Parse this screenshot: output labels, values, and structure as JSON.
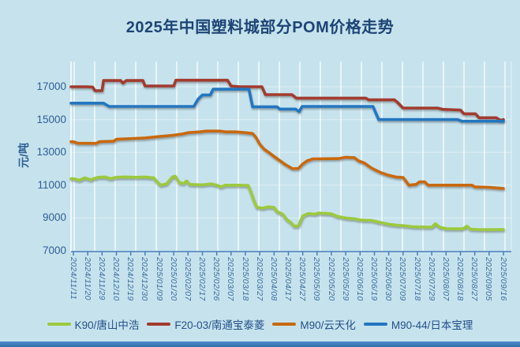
{
  "title": "2025年中国塑料城部分POM价格走势",
  "chart_data": {
    "type": "line",
    "title": "2025年中国塑料城部分POM价格走势",
    "xlabel": "",
    "ylabel": "元/吨",
    "ylim": [
      7000,
      18540
    ],
    "y_ticks": [
      7000,
      9000,
      11000,
      13000,
      15000,
      17000
    ],
    "grid": "vertical-white, faint-horizontal",
    "legend_position": "bottom",
    "x_labels": [
      "2024/11/11",
      "2024/11/20",
      "2024/11/29",
      "2024/12/10",
      "2024/12/19",
      "2024/12/30",
      "2025/01/09",
      "2025/01/20",
      "2025/02/07",
      "2025/02/17",
      "2025/02/26",
      "2025/03/07",
      "2025/03/18",
      "2025/03/27",
      "2025/04/08",
      "2025/04/17",
      "2025/04/27",
      "2025/05/09",
      "2025/05/20",
      "2025/05/29",
      "2025/06/10",
      "2025/06/19",
      "2025/06/30",
      "2025/07/09",
      "2025/07/18",
      "2025/07/29",
      "2025/08/07",
      "2025/08/18",
      "2025/08/27",
      "2025/09/05",
      "2025/09/16"
    ],
    "series": [
      {
        "name": "K90/唐山中浩",
        "color": "#9cc93c",
        "points": [
          [
            0,
            11400
          ],
          [
            0.4,
            11300
          ],
          [
            0.8,
            11450
          ],
          [
            1.2,
            11330
          ],
          [
            1.7,
            11480
          ],
          [
            2.2,
            11500
          ],
          [
            2.6,
            11400
          ],
          [
            3,
            11480
          ],
          [
            3.6,
            11500
          ],
          [
            4.4,
            11480
          ],
          [
            5,
            11500
          ],
          [
            5.6,
            11450
          ],
          [
            5.9,
            11150
          ],
          [
            6.1,
            11000
          ],
          [
            6.5,
            11080
          ],
          [
            6.9,
            11500
          ],
          [
            7.1,
            11550
          ],
          [
            7.4,
            11150
          ],
          [
            7.7,
            11100
          ],
          [
            7.9,
            11260
          ],
          [
            8.1,
            11050
          ],
          [
            9,
            11020
          ],
          [
            9.6,
            11080
          ],
          [
            10,
            11000
          ],
          [
            10.3,
            10900
          ],
          [
            10.6,
            11000
          ],
          [
            11.5,
            11000
          ],
          [
            12.2,
            10980
          ],
          [
            12.35,
            10650
          ],
          [
            12.6,
            10050
          ],
          [
            12.8,
            9650
          ],
          [
            13.2,
            9600
          ],
          [
            13.6,
            9680
          ],
          [
            14,
            9650
          ],
          [
            14.2,
            9400
          ],
          [
            14.6,
            9230
          ],
          [
            14.9,
            8900
          ],
          [
            15.2,
            8700
          ],
          [
            15.4,
            8500
          ],
          [
            15.7,
            8520
          ],
          [
            16,
            9120
          ],
          [
            16.4,
            9280
          ],
          [
            16.8,
            9230
          ],
          [
            17.1,
            9300
          ],
          [
            17.6,
            9280
          ],
          [
            18,
            9250
          ],
          [
            18.4,
            9100
          ],
          [
            19,
            9000
          ],
          [
            19.6,
            8950
          ],
          [
            20,
            8880
          ],
          [
            20.8,
            8850
          ],
          [
            21.3,
            8750
          ],
          [
            22,
            8620
          ],
          [
            22.6,
            8560
          ],
          [
            23.2,
            8520
          ],
          [
            23.7,
            8460
          ],
          [
            24.3,
            8450
          ],
          [
            25,
            8440
          ],
          [
            25.25,
            8650
          ],
          [
            25.55,
            8440
          ],
          [
            26,
            8350
          ],
          [
            26.8,
            8340
          ],
          [
            27.2,
            8350
          ],
          [
            27.45,
            8500
          ],
          [
            27.7,
            8320
          ],
          [
            28.2,
            8300
          ],
          [
            29,
            8290
          ],
          [
            30,
            8300
          ]
        ]
      },
      {
        "name": "F20-03/南通宝泰菱",
        "color": "#a23b2e",
        "points": [
          [
            0,
            17000
          ],
          [
            1,
            17000
          ],
          [
            1.35,
            16980
          ],
          [
            1.5,
            16760
          ],
          [
            2,
            16760
          ],
          [
            2.1,
            17380
          ],
          [
            3,
            17380
          ],
          [
            3.3,
            17380
          ],
          [
            3.45,
            17220
          ],
          [
            3.7,
            17380
          ],
          [
            4.85,
            17380
          ],
          [
            5,
            17050
          ],
          [
            7,
            17050
          ],
          [
            7.15,
            17400
          ],
          [
            10.75,
            17400
          ],
          [
            11,
            17050
          ],
          [
            11.6,
            17000
          ],
          [
            13.15,
            17000
          ],
          [
            13.4,
            16520
          ],
          [
            15.25,
            16520
          ],
          [
            15.55,
            16310
          ],
          [
            20.4,
            16310
          ],
          [
            20.6,
            16200
          ],
          [
            22.4,
            16200
          ],
          [
            22.6,
            16060
          ],
          [
            23,
            15700
          ],
          [
            25.4,
            15700
          ],
          [
            25.8,
            15620
          ],
          [
            27,
            15580
          ],
          [
            27.25,
            15350
          ],
          [
            28.05,
            15350
          ],
          [
            28.3,
            15110
          ],
          [
            29.5,
            15110
          ],
          [
            29.7,
            15000
          ],
          [
            29.85,
            14950
          ],
          [
            30,
            15000
          ]
        ]
      },
      {
        "name": "M90/云天化",
        "color": "#c8690f",
        "points": [
          [
            0,
            13650
          ],
          [
            0.3,
            13560
          ],
          [
            1.6,
            13550
          ],
          [
            1.8,
            13650
          ],
          [
            2.8,
            13680
          ],
          [
            3,
            13800
          ],
          [
            4.3,
            13850
          ],
          [
            5,
            13880
          ],
          [
            5.8,
            13950
          ],
          [
            6.4,
            14000
          ],
          [
            7,
            14050
          ],
          [
            7.6,
            14120
          ],
          [
            8,
            14200
          ],
          [
            8.8,
            14250
          ],
          [
            9.3,
            14300
          ],
          [
            10.2,
            14300
          ],
          [
            10.6,
            14250
          ],
          [
            11.3,
            14250
          ],
          [
            12,
            14200
          ],
          [
            12.5,
            14150
          ],
          [
            12.75,
            13900
          ],
          [
            13,
            13500
          ],
          [
            13.3,
            13200
          ],
          [
            13.7,
            12950
          ],
          [
            14,
            12750
          ],
          [
            14.4,
            12500
          ],
          [
            14.8,
            12250
          ],
          [
            15,
            12150
          ],
          [
            15.3,
            12000
          ],
          [
            15.7,
            12020
          ],
          [
            16,
            12300
          ],
          [
            16.3,
            12480
          ],
          [
            16.7,
            12600
          ],
          [
            18.5,
            12620
          ],
          [
            19,
            12700
          ],
          [
            19.6,
            12680
          ],
          [
            19.9,
            12480
          ],
          [
            20.3,
            12350
          ],
          [
            20.7,
            12100
          ],
          [
            21,
            11950
          ],
          [
            21.5,
            11750
          ],
          [
            22,
            11600
          ],
          [
            22.5,
            11500
          ],
          [
            23,
            11470
          ],
          [
            23.2,
            11250
          ],
          [
            23.4,
            11000
          ],
          [
            23.9,
            11050
          ],
          [
            24.15,
            11200
          ],
          [
            24.5,
            11200
          ],
          [
            24.75,
            11000
          ],
          [
            27.8,
            11000
          ],
          [
            28,
            10900
          ],
          [
            29,
            10870
          ],
          [
            29.5,
            10830
          ],
          [
            30,
            10800
          ]
        ]
      },
      {
        "name": "M90-44/日本宝理",
        "color": "#2176c0",
        "points": [
          [
            0,
            16000
          ],
          [
            2.1,
            16000
          ],
          [
            2.5,
            15800
          ],
          [
            8.4,
            15800
          ],
          [
            8.7,
            16250
          ],
          [
            9,
            16500
          ],
          [
            9.55,
            16500
          ],
          [
            9.75,
            16850
          ],
          [
            12.25,
            16850
          ],
          [
            12.5,
            15780
          ],
          [
            14.2,
            15780
          ],
          [
            14.4,
            15640
          ],
          [
            15.5,
            15640
          ],
          [
            15.75,
            15480
          ],
          [
            15.95,
            15800
          ],
          [
            20.9,
            15800
          ],
          [
            21.3,
            15000
          ],
          [
            26.8,
            15000
          ],
          [
            27.1,
            14900
          ],
          [
            30,
            14900
          ]
        ]
      }
    ]
  },
  "colors": {
    "background": "#c6e3ed",
    "title_text": "#1d4474",
    "axis_text": "#2f5e94",
    "x_label_text": "#3d6c9e",
    "legend_text": "#24508a",
    "x_axis_line": "#4a7ebb",
    "gridline": "#ffffff",
    "bottom_strip": "#3a7fc1"
  }
}
